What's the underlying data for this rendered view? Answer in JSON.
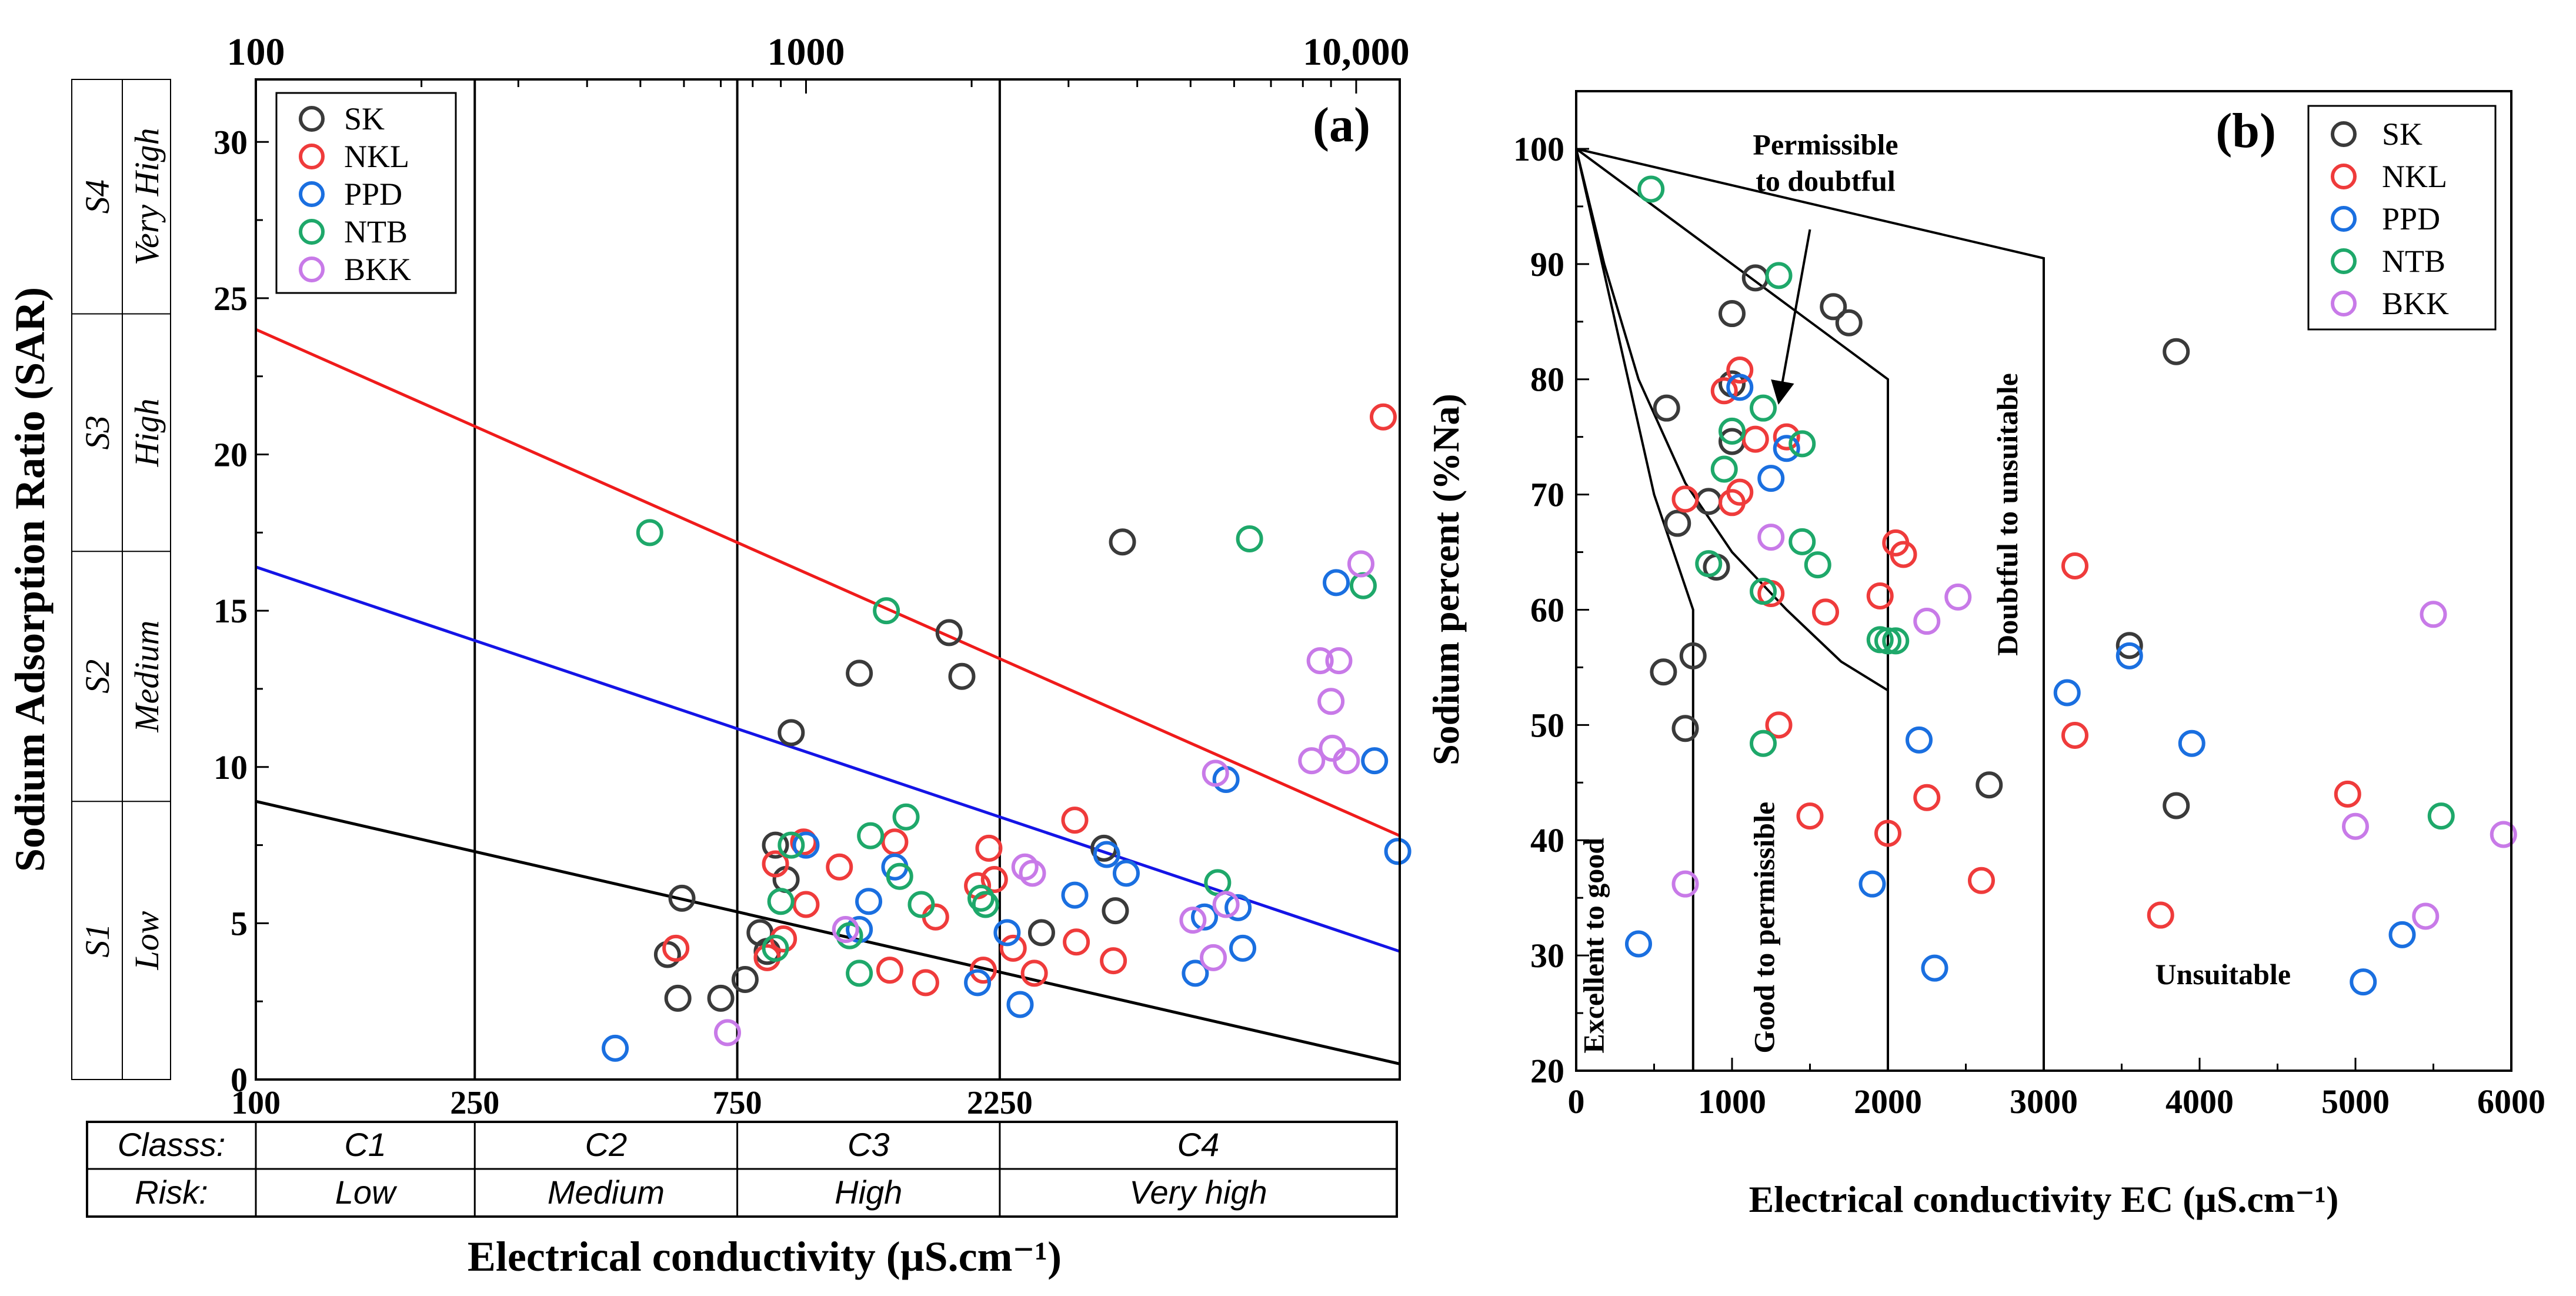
{
  "chart_data": [
    {
      "id": "a",
      "type": "scatter",
      "panel_label": "(a)",
      "xscale": "log",
      "xlim": [
        100,
        12000
      ],
      "ylim": [
        0,
        32
      ],
      "top_ticks": [
        {
          "v": 100,
          "label": "100"
        },
        {
          "v": 1000,
          "label": "1000"
        },
        {
          "v": 10000,
          "label": "10,000"
        }
      ],
      "bottom_ticks": [
        {
          "v": 100,
          "label": "100"
        },
        {
          "v": 250,
          "label": "250"
        },
        {
          "v": 750,
          "label": "750"
        },
        {
          "v": 2250,
          "label": "2250"
        }
      ],
      "yticks": [
        {
          "v": 0,
          "label": "0"
        },
        {
          "v": 5,
          "label": "5"
        },
        {
          "v": 10,
          "label": "10"
        },
        {
          "v": 15,
          "label": "15"
        },
        {
          "v": 20,
          "label": "20"
        },
        {
          "v": 25,
          "label": "25"
        },
        {
          "v": 30,
          "label": "30"
        }
      ],
      "ylabel": "Sodium Adsorption Ratio (SAR)",
      "xlabel": "Electrical conductivity (μS.cm⁻¹)",
      "class_vlines": [
        250,
        750,
        2250
      ],
      "boundary_lines": [
        {
          "name": "red",
          "color": "#ef1b1b",
          "from": [
            100,
            24
          ],
          "to": [
            12000,
            7.8
          ]
        },
        {
          "name": "blue",
          "color": "#1414e6",
          "from": [
            100,
            16.4
          ],
          "to": [
            12000,
            4.1
          ]
        },
        {
          "name": "black",
          "color": "#000000",
          "from": [
            100,
            8.9
          ],
          "to": [
            12000,
            0.5
          ]
        }
      ],
      "sar_classes": [
        {
          "code": "S1",
          "risk": "Low",
          "from": 0,
          "to": 8.9
        },
        {
          "code": "S2",
          "risk": "Medium",
          "from": 8.9,
          "to": 16.9
        },
        {
          "code": "S3",
          "risk": "High",
          "from": 16.9,
          "to": 24.5
        },
        {
          "code": "S4",
          "risk": "Very High",
          "from": 24.5,
          "to": 32
        }
      ],
      "ec_table": {
        "row1_label": "Classs:",
        "row2_label": "Risk:",
        "classes": [
          {
            "code": "C1",
            "risk": "Low",
            "from": 100,
            "to": 250
          },
          {
            "code": "C2",
            "risk": "Medium",
            "from": 250,
            "to": 750
          },
          {
            "code": "C3",
            "risk": "High",
            "from": 750,
            "to": 2250
          },
          {
            "code": "C4",
            "risk": "Very high",
            "from": 2250,
            "to": 12000
          }
        ]
      },
      "legend": {
        "position": "top-left"
      },
      "series": [
        {
          "name": "SK",
          "color": "#3a3a3a",
          "points": [
            [
              595,
              5.8
            ],
            [
              560,
              4.0
            ],
            [
              585,
              2.6
            ],
            [
              700,
              2.6
            ],
            [
              775,
              3.2
            ],
            [
              825,
              4.7
            ],
            [
              850,
              4.1
            ],
            [
              880,
              7.5
            ],
            [
              920,
              6.4
            ],
            [
              940,
              11.1
            ],
            [
              1250,
              13.0
            ],
            [
              1820,
              14.3
            ],
            [
              1920,
              12.9
            ],
            [
              2680,
              4.7
            ],
            [
              3480,
              7.4
            ],
            [
              3650,
              5.4
            ],
            [
              3760,
              17.2
            ]
          ]
        },
        {
          "name": "NKL",
          "color": "#ef3b3b",
          "points": [
            [
              580,
              4.2
            ],
            [
              850,
              3.9
            ],
            [
              880,
              6.9
            ],
            [
              910,
              4.5
            ],
            [
              990,
              7.6
            ],
            [
              1000,
              5.6
            ],
            [
              1150,
              6.8
            ],
            [
              1420,
              3.5
            ],
            [
              1450,
              7.6
            ],
            [
              1650,
              3.1
            ],
            [
              1720,
              5.2
            ],
            [
              2050,
              6.2
            ],
            [
              2100,
              3.5
            ],
            [
              2150,
              7.4
            ],
            [
              2200,
              6.4
            ],
            [
              2380,
              4.2
            ],
            [
              2600,
              3.4
            ],
            [
              3080,
              8.3
            ],
            [
              3100,
              4.4
            ],
            [
              3620,
              3.8
            ],
            [
              11200,
              21.2
            ]
          ]
        },
        {
          "name": "PPD",
          "color": "#1a6fe0",
          "points": [
            [
              450,
              1.0
            ],
            [
              1000,
              7.5
            ],
            [
              1250,
              4.8
            ],
            [
              1300,
              5.7
            ],
            [
              1450,
              6.8
            ],
            [
              2050,
              3.1
            ],
            [
              2320,
              4.7
            ],
            [
              2450,
              2.4
            ],
            [
              3080,
              5.9
            ],
            [
              3520,
              7.2
            ],
            [
              3820,
              6.6
            ],
            [
              5100,
              3.4
            ],
            [
              5300,
              5.2
            ],
            [
              5800,
              9.6
            ],
            [
              6100,
              5.5
            ],
            [
              6220,
              4.2
            ],
            [
              9200,
              15.9
            ],
            [
              10800,
              10.2
            ],
            [
              11900,
              7.3
            ]
          ]
        },
        {
          "name": "NTB",
          "color": "#1ea86a",
          "points": [
            [
              520,
              17.5
            ],
            [
              880,
              4.2
            ],
            [
              900,
              5.7
            ],
            [
              940,
              7.5
            ],
            [
              1200,
              4.6
            ],
            [
              1250,
              3.4
            ],
            [
              1310,
              7.8
            ],
            [
              1400,
              15.0
            ],
            [
              1480,
              6.5
            ],
            [
              1520,
              8.4
            ],
            [
              1620,
              5.6
            ],
            [
              2080,
              5.8
            ],
            [
              2120,
              5.6
            ],
            [
              5600,
              6.3
            ],
            [
              6400,
              17.3
            ],
            [
              10300,
              15.8
            ]
          ]
        },
        {
          "name": "BKK",
          "color": "#c87ae8",
          "points": [
            [
              720,
              1.5
            ],
            [
              1180,
              4.8
            ],
            [
              2500,
              6.8
            ],
            [
              2580,
              6.6
            ],
            [
              5050,
              5.1
            ],
            [
              5500,
              3.9
            ],
            [
              5550,
              9.8
            ],
            [
              5800,
              5.6
            ],
            [
              8300,
              10.2
            ],
            [
              8600,
              13.4
            ],
            [
              9000,
              12.1
            ],
            [
              9050,
              10.6
            ],
            [
              9300,
              13.4
            ],
            [
              9600,
              10.2
            ],
            [
              10200,
              16.5
            ]
          ]
        }
      ]
    },
    {
      "id": "b",
      "type": "scatter",
      "panel_label": "(b)",
      "xlim": [
        0,
        6000
      ],
      "ylim": [
        20,
        105
      ],
      "xticks": [
        {
          "v": 0,
          "label": "0"
        },
        {
          "v": 1000,
          "label": "1000"
        },
        {
          "v": 2000,
          "label": "2000"
        },
        {
          "v": 3000,
          "label": "3000"
        },
        {
          "v": 4000,
          "label": "4000"
        },
        {
          "v": 5000,
          "label": "5000"
        },
        {
          "v": 6000,
          "label": "6000"
        }
      ],
      "yticks": [
        {
          "v": 20,
          "label": "20"
        },
        {
          "v": 30,
          "label": "30"
        },
        {
          "v": 40,
          "label": "40"
        },
        {
          "v": 50,
          "label": "50"
        },
        {
          "v": 60,
          "label": "60"
        },
        {
          "v": 70,
          "label": "70"
        },
        {
          "v": 80,
          "label": "80"
        },
        {
          "v": 90,
          "label": "90"
        },
        {
          "v": 100,
          "label": "100"
        }
      ],
      "xlabel": "Electrical conductivity EC (μS.cm⁻¹)",
      "ylabel": "Sodium percent (%Na)",
      "legend": {
        "position": "top-right"
      },
      "boundaries": {
        "outer_top": [
          [
            0,
            100
          ],
          [
            3000,
            90.5
          ],
          [
            3000,
            20
          ]
        ],
        "permissible_top": [
          [
            0,
            100
          ],
          [
            2000,
            80
          ],
          [
            2000,
            20
          ]
        ],
        "good_curve": [
          [
            0,
            100
          ],
          [
            180,
            90
          ],
          [
            400,
            80
          ],
          [
            700,
            71
          ],
          [
            1000,
            65
          ],
          [
            1350,
            60
          ],
          [
            1700,
            55.5
          ],
          [
            2000,
            53
          ]
        ],
        "excellent_line": [
          [
            0,
            100
          ],
          [
            250,
            85
          ],
          [
            500,
            70
          ],
          [
            750,
            60
          ],
          [
            750,
            20
          ]
        ]
      },
      "zone_labels": [
        {
          "text": "Excellent to good",
          "x": 175,
          "y": 21.5,
          "rotate": true
        },
        {
          "text": "Good to permissible",
          "x": 1270,
          "y": 21.5,
          "rotate": true
        },
        {
          "text": "Doubtful to unsuitable",
          "x": 2830,
          "y": 56,
          "rotate": true
        },
        {
          "text": "Unsuitable",
          "x": 4150,
          "y": 27.5,
          "rotate": false
        }
      ],
      "annotation": {
        "line1": "Permissible",
        "line2": "to doubtful",
        "text_x": 1600,
        "text_y": 99.5,
        "arrow_from": [
          1500,
          93
        ],
        "arrow_to": [
          1300,
          78
        ]
      },
      "series": [
        {
          "name": "SK",
          "color": "#3a3a3a",
          "points": [
            [
              560,
              54.6
            ],
            [
              580,
              77.5
            ],
            [
              650,
              67.5
            ],
            [
              700,
              49.7
            ],
            [
              750,
              56.0
            ],
            [
              850,
              69.4
            ],
            [
              900,
              63.7
            ],
            [
              1000,
              79.6
            ],
            [
              1000,
              74.6
            ],
            [
              1000,
              85.7
            ],
            [
              1150,
              88.8
            ],
            [
              1650,
              86.3
            ],
            [
              1750,
              84.9
            ],
            [
              2650,
              44.8
            ],
            [
              3550,
              56.9
            ],
            [
              3850,
              43.0
            ],
            [
              3850,
              82.4
            ]
          ]
        },
        {
          "name": "NKL",
          "color": "#ef3b3b",
          "points": [
            [
              700,
              69.6
            ],
            [
              950,
              79.0
            ],
            [
              1000,
              69.3
            ],
            [
              1050,
              80.8
            ],
            [
              1050,
              70.2
            ],
            [
              1150,
              74.8
            ],
            [
              1250,
              61.4
            ],
            [
              1300,
              50.0
            ],
            [
              1350,
              75.0
            ],
            [
              1500,
              42.1
            ],
            [
              1600,
              59.8
            ],
            [
              1950,
              61.2
            ],
            [
              2000,
              40.6
            ],
            [
              2050,
              65.8
            ],
            [
              2100,
              64.8
            ],
            [
              2250,
              43.7
            ],
            [
              2600,
              36.5
            ],
            [
              3200,
              49.1
            ],
            [
              3200,
              63.8
            ],
            [
              3750,
              33.5
            ],
            [
              4950,
              44.0
            ]
          ]
        },
        {
          "name": "PPD",
          "color": "#1a6fe0",
          "points": [
            [
              400,
              31.0
            ],
            [
              1050,
              79.3
            ],
            [
              1250,
              71.4
            ],
            [
              1350,
              74.0
            ],
            [
              1900,
              36.2
            ],
            [
              2200,
              48.7
            ],
            [
              2300,
              28.9
            ],
            [
              3150,
              52.8
            ],
            [
              3550,
              56.0
            ],
            [
              3950,
              48.4
            ],
            [
              5050,
              27.7
            ],
            [
              5300,
              31.8
            ]
          ]
        },
        {
          "name": "NTB",
          "color": "#1ea86a",
          "points": [
            [
              480,
              96.5
            ],
            [
              850,
              64.0
            ],
            [
              950,
              72.2
            ],
            [
              1000,
              75.5
            ],
            [
              1200,
              77.5
            ],
            [
              1200,
              48.4
            ],
            [
              1200,
              61.6
            ],
            [
              1300,
              89.0
            ],
            [
              1450,
              74.4
            ],
            [
              1450,
              65.9
            ],
            [
              1550,
              63.9
            ],
            [
              1950,
              57.4
            ],
            [
              2000,
              57.3
            ],
            [
              2050,
              57.3
            ],
            [
              5550,
              42.1
            ]
          ]
        },
        {
          "name": "BKK",
          "color": "#c87ae8",
          "points": [
            [
              700,
              36.2
            ],
            [
              1250,
              66.3
            ],
            [
              2250,
              59.0
            ],
            [
              2450,
              61.1
            ],
            [
              5000,
              41.2
            ],
            [
              5450,
              33.4
            ],
            [
              5500,
              59.6
            ],
            [
              5950,
              40.5
            ]
          ]
        }
      ]
    }
  ]
}
